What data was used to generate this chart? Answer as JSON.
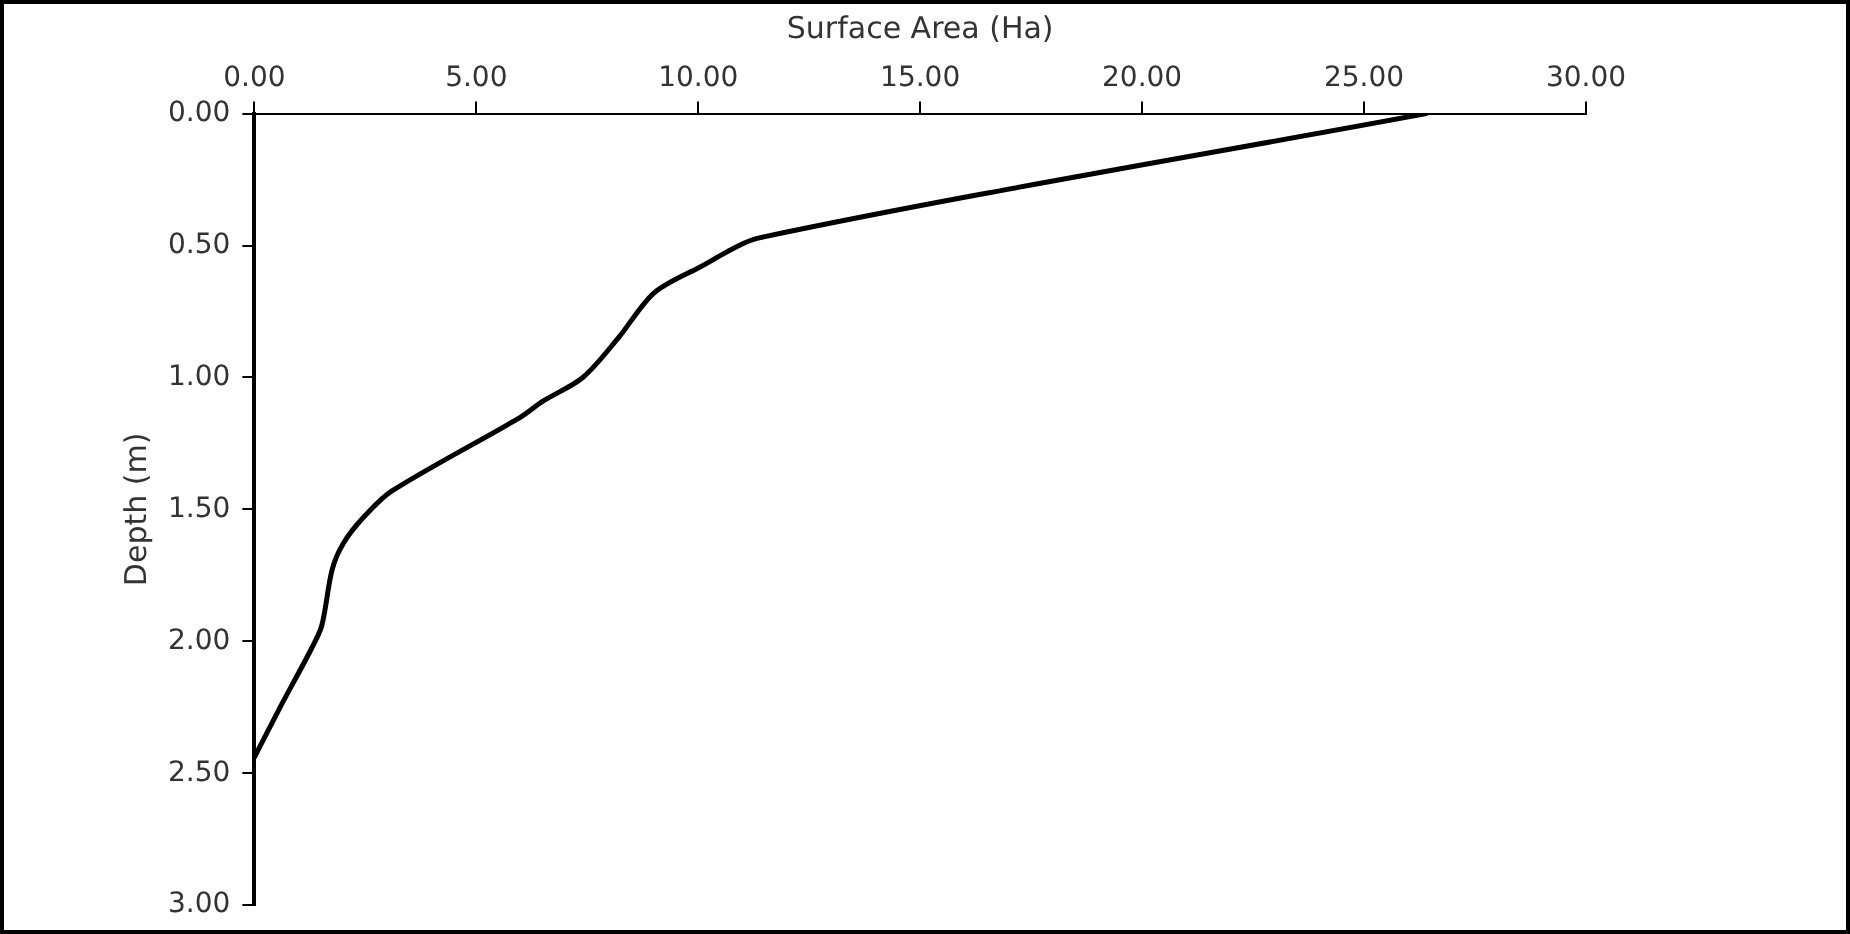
{
  "chart_data": {
    "type": "line",
    "xlabel": "Surface Area (Ha)",
    "ylabel": "Depth (m)",
    "series": [
      {
        "color": "#000000",
        "x": [
          26.4,
          11.4,
          10.0,
          9.0,
          8.2,
          7.4,
          6.5,
          6.0,
          3.1,
          2.46,
          2.0,
          1.75,
          1.52,
          1.28,
          0.58,
          0
        ],
        "values": [
          0,
          0.47,
          0.585,
          0.68,
          0.85,
          1.0,
          1.09,
          1.15,
          1.43,
          1.53,
          1.63,
          1.73,
          1.94,
          2.03,
          2.25,
          2.44
        ]
      }
    ],
    "xlim": [
      0,
      30
    ],
    "xticks": [
      {
        "value": 0,
        "label": "0.00"
      },
      {
        "value": 5,
        "label": "5.00"
      },
      {
        "value": 10,
        "label": "10.00"
      },
      {
        "value": 15,
        "label": "15.00"
      },
      {
        "value": 20,
        "label": "20.00"
      },
      {
        "value": 25,
        "label": "25.00"
      },
      {
        "value": 30,
        "label": "30.00"
      }
    ],
    "ylim": [
      3,
      0
    ],
    "yticks": [
      {
        "value": 0,
        "label": "0.00"
      },
      {
        "value": 0.5,
        "label": "0.50"
      },
      {
        "value": 1,
        "label": "1.00"
      },
      {
        "value": 1.5,
        "label": "1.50"
      },
      {
        "value": 2,
        "label": "2.00"
      },
      {
        "value": 2.5,
        "label": "2.50"
      },
      {
        "value": 3,
        "label": "3.00"
      }
    ],
    "grid": false,
    "legend": false,
    "marker": "none",
    "line_style": "solid"
  }
}
